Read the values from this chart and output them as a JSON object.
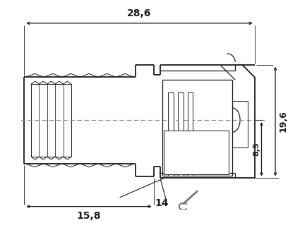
{
  "bg_color": "#ffffff",
  "lc": "#1a1a1a",
  "dc": "#555555",
  "dim_28_6": "28,6",
  "dim_15_8": "15,8",
  "dim_19_6": "19,6",
  "dim_8_5": "8,5",
  "dim_14": "14",
  "figsize": [
    4.08,
    3.5
  ],
  "dpi": 100
}
